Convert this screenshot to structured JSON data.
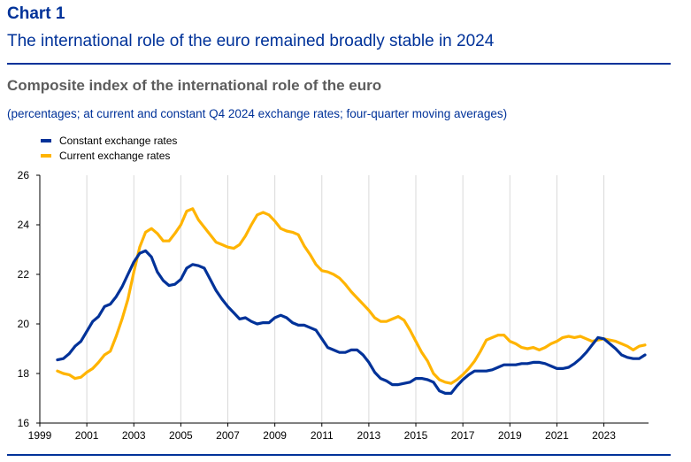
{
  "header": {
    "chart_label": "Chart 1",
    "headline": "The international role of the euro remained broadly stable in 2024",
    "subtitle": "Composite index of the international role of the euro",
    "units": "(percentages; at current and constant Q4 2024 exchange rates; four-quarter moving averages)"
  },
  "chart_data": {
    "type": "line",
    "title": "Composite index of the international role of the euro",
    "xlabel": "",
    "ylabel": "",
    "xlim": [
      1999,
      2024.9
    ],
    "ylim": [
      16,
      26
    ],
    "x_ticks": [
      1999,
      2001,
      2003,
      2005,
      2007,
      2009,
      2011,
      2013,
      2015,
      2017,
      2019,
      2021,
      2023
    ],
    "y_ticks": [
      16,
      18,
      20,
      22,
      24,
      26
    ],
    "grid": "vertical",
    "legend_position": "top-left",
    "series": [
      {
        "name": "Constant exchange rates",
        "color": "#003299",
        "points": [
          [
            1999.75,
            18.55
          ],
          [
            2000.0,
            18.6
          ],
          [
            2000.25,
            18.8
          ],
          [
            2000.5,
            19.1
          ],
          [
            2000.75,
            19.3
          ],
          [
            2001.0,
            19.7
          ],
          [
            2001.25,
            20.1
          ],
          [
            2001.5,
            20.3
          ],
          [
            2001.75,
            20.7
          ],
          [
            2002.0,
            20.8
          ],
          [
            2002.25,
            21.1
          ],
          [
            2002.5,
            21.5
          ],
          [
            2002.75,
            22.0
          ],
          [
            2003.0,
            22.5
          ],
          [
            2003.25,
            22.85
          ],
          [
            2003.5,
            22.95
          ],
          [
            2003.75,
            22.7
          ],
          [
            2004.0,
            22.1
          ],
          [
            2004.25,
            21.75
          ],
          [
            2004.5,
            21.55
          ],
          [
            2004.75,
            21.6
          ],
          [
            2005.0,
            21.8
          ],
          [
            2005.25,
            22.25
          ],
          [
            2005.5,
            22.4
          ],
          [
            2005.75,
            22.35
          ],
          [
            2006.0,
            22.25
          ],
          [
            2006.25,
            21.8
          ],
          [
            2006.5,
            21.35
          ],
          [
            2006.75,
            21.0
          ],
          [
            2007.0,
            20.7
          ],
          [
            2007.25,
            20.45
          ],
          [
            2007.5,
            20.2
          ],
          [
            2007.75,
            20.25
          ],
          [
            2008.0,
            20.1
          ],
          [
            2008.25,
            20.0
          ],
          [
            2008.5,
            20.05
          ],
          [
            2008.75,
            20.05
          ],
          [
            2009.0,
            20.25
          ],
          [
            2009.25,
            20.35
          ],
          [
            2009.5,
            20.25
          ],
          [
            2009.75,
            20.05
          ],
          [
            2010.0,
            19.95
          ],
          [
            2010.25,
            19.95
          ],
          [
            2010.5,
            19.85
          ],
          [
            2010.75,
            19.75
          ],
          [
            2011.0,
            19.4
          ],
          [
            2011.25,
            19.05
          ],
          [
            2011.5,
            18.95
          ],
          [
            2011.75,
            18.85
          ],
          [
            2012.0,
            18.85
          ],
          [
            2012.25,
            18.95
          ],
          [
            2012.5,
            18.95
          ],
          [
            2012.75,
            18.75
          ],
          [
            2013.0,
            18.45
          ],
          [
            2013.25,
            18.05
          ],
          [
            2013.5,
            17.8
          ],
          [
            2013.75,
            17.7
          ],
          [
            2014.0,
            17.55
          ],
          [
            2014.25,
            17.55
          ],
          [
            2014.5,
            17.6
          ],
          [
            2014.75,
            17.65
          ],
          [
            2015.0,
            17.8
          ],
          [
            2015.25,
            17.8
          ],
          [
            2015.5,
            17.75
          ],
          [
            2015.75,
            17.65
          ],
          [
            2016.0,
            17.3
          ],
          [
            2016.25,
            17.2
          ],
          [
            2016.5,
            17.2
          ],
          [
            2016.75,
            17.5
          ],
          [
            2017.0,
            17.75
          ],
          [
            2017.25,
            17.95
          ],
          [
            2017.5,
            18.1
          ],
          [
            2017.75,
            18.1
          ],
          [
            2018.0,
            18.1
          ],
          [
            2018.25,
            18.15
          ],
          [
            2018.5,
            18.25
          ],
          [
            2018.75,
            18.35
          ],
          [
            2019.0,
            18.35
          ],
          [
            2019.25,
            18.35
          ],
          [
            2019.5,
            18.4
          ],
          [
            2019.75,
            18.4
          ],
          [
            2020.0,
            18.45
          ],
          [
            2020.25,
            18.45
          ],
          [
            2020.5,
            18.4
          ],
          [
            2020.75,
            18.3
          ],
          [
            2021.0,
            18.2
          ],
          [
            2021.25,
            18.2
          ],
          [
            2021.5,
            18.25
          ],
          [
            2021.75,
            18.4
          ],
          [
            2022.0,
            18.6
          ],
          [
            2022.25,
            18.85
          ],
          [
            2022.5,
            19.15
          ],
          [
            2022.75,
            19.45
          ],
          [
            2023.0,
            19.4
          ],
          [
            2023.25,
            19.2
          ],
          [
            2023.5,
            19.0
          ],
          [
            2023.75,
            18.75
          ],
          [
            2024.0,
            18.65
          ],
          [
            2024.25,
            18.6
          ],
          [
            2024.5,
            18.6
          ],
          [
            2024.75,
            18.75
          ]
        ]
      },
      {
        "name": "Current exchange rates",
        "color": "#ffb400",
        "points": [
          [
            1999.75,
            18.1
          ],
          [
            2000.0,
            18.0
          ],
          [
            2000.25,
            17.95
          ],
          [
            2000.5,
            17.8
          ],
          [
            2000.75,
            17.85
          ],
          [
            2001.0,
            18.05
          ],
          [
            2001.25,
            18.2
          ],
          [
            2001.5,
            18.45
          ],
          [
            2001.75,
            18.75
          ],
          [
            2002.0,
            18.9
          ],
          [
            2002.25,
            19.5
          ],
          [
            2002.5,
            20.2
          ],
          [
            2002.75,
            21.0
          ],
          [
            2003.0,
            22.1
          ],
          [
            2003.25,
            23.1
          ],
          [
            2003.5,
            23.7
          ],
          [
            2003.75,
            23.85
          ],
          [
            2004.0,
            23.65
          ],
          [
            2004.25,
            23.35
          ],
          [
            2004.5,
            23.35
          ],
          [
            2004.75,
            23.65
          ],
          [
            2005.0,
            24.0
          ],
          [
            2005.25,
            24.55
          ],
          [
            2005.5,
            24.65
          ],
          [
            2005.75,
            24.2
          ],
          [
            2006.0,
            23.9
          ],
          [
            2006.25,
            23.6
          ],
          [
            2006.5,
            23.3
          ],
          [
            2006.75,
            23.2
          ],
          [
            2007.0,
            23.1
          ],
          [
            2007.25,
            23.05
          ],
          [
            2007.5,
            23.2
          ],
          [
            2007.75,
            23.55
          ],
          [
            2008.0,
            24.0
          ],
          [
            2008.25,
            24.4
          ],
          [
            2008.5,
            24.5
          ],
          [
            2008.75,
            24.4
          ],
          [
            2009.0,
            24.15
          ],
          [
            2009.25,
            23.85
          ],
          [
            2009.5,
            23.75
          ],
          [
            2009.75,
            23.7
          ],
          [
            2010.0,
            23.6
          ],
          [
            2010.25,
            23.15
          ],
          [
            2010.5,
            22.8
          ],
          [
            2010.75,
            22.4
          ],
          [
            2011.0,
            22.15
          ],
          [
            2011.25,
            22.1
          ],
          [
            2011.5,
            22.0
          ],
          [
            2011.75,
            21.85
          ],
          [
            2012.0,
            21.6
          ],
          [
            2012.25,
            21.3
          ],
          [
            2012.5,
            21.05
          ],
          [
            2012.75,
            20.8
          ],
          [
            2013.0,
            20.55
          ],
          [
            2013.25,
            20.25
          ],
          [
            2013.5,
            20.1
          ],
          [
            2013.75,
            20.1
          ],
          [
            2014.0,
            20.2
          ],
          [
            2014.25,
            20.3
          ],
          [
            2014.5,
            20.15
          ],
          [
            2014.75,
            19.75
          ],
          [
            2015.0,
            19.3
          ],
          [
            2015.25,
            18.85
          ],
          [
            2015.5,
            18.5
          ],
          [
            2015.75,
            18.0
          ],
          [
            2016.0,
            17.75
          ],
          [
            2016.25,
            17.65
          ],
          [
            2016.5,
            17.6
          ],
          [
            2016.75,
            17.75
          ],
          [
            2017.0,
            17.95
          ],
          [
            2017.25,
            18.2
          ],
          [
            2017.5,
            18.5
          ],
          [
            2017.75,
            18.9
          ],
          [
            2018.0,
            19.35
          ],
          [
            2018.25,
            19.45
          ],
          [
            2018.5,
            19.55
          ],
          [
            2018.75,
            19.55
          ],
          [
            2019.0,
            19.3
          ],
          [
            2019.25,
            19.2
          ],
          [
            2019.5,
            19.05
          ],
          [
            2019.75,
            19.0
          ],
          [
            2020.0,
            19.05
          ],
          [
            2020.25,
            18.95
          ],
          [
            2020.5,
            19.05
          ],
          [
            2020.75,
            19.2
          ],
          [
            2021.0,
            19.3
          ],
          [
            2021.25,
            19.45
          ],
          [
            2021.5,
            19.5
          ],
          [
            2021.75,
            19.45
          ],
          [
            2022.0,
            19.5
          ],
          [
            2022.25,
            19.4
          ],
          [
            2022.5,
            19.3
          ],
          [
            2022.75,
            19.35
          ],
          [
            2023.0,
            19.4
          ],
          [
            2023.25,
            19.35
          ],
          [
            2023.5,
            19.3
          ],
          [
            2023.75,
            19.2
          ],
          [
            2024.0,
            19.1
          ],
          [
            2024.25,
            18.95
          ],
          [
            2024.5,
            19.1
          ],
          [
            2024.75,
            19.15
          ]
        ]
      }
    ]
  }
}
